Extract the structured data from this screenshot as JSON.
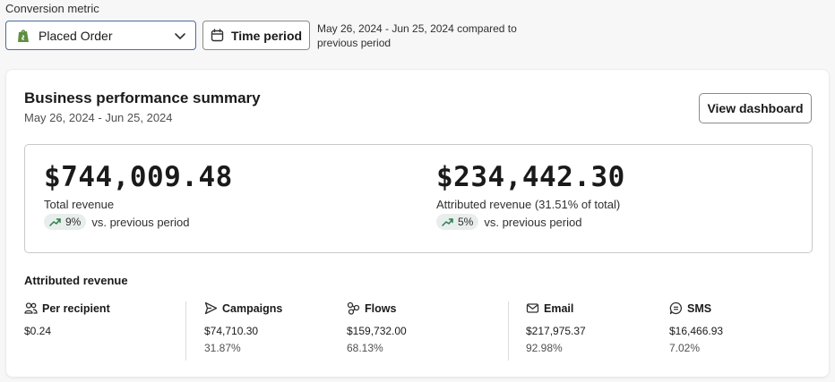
{
  "conversion": {
    "label": "Conversion metric",
    "selected": "Placed Order",
    "selected_icon": "shopify-bag-icon"
  },
  "time": {
    "button_label": "Time period",
    "note": "May 26, 2024 - Jun 25, 2024 compared to previous period"
  },
  "summary": {
    "title": "Business performance summary",
    "date_range": "May 26, 2024 - Jun 25, 2024",
    "dashboard_button": "View dashboard",
    "total": {
      "value": "$744,009.48",
      "label": "Total revenue",
      "change": "9%",
      "change_text": "vs. previous period"
    },
    "attributed": {
      "value": "$234,442.30",
      "label": "Attributed revenue (31.51% of total)",
      "change": "5%",
      "change_text": "vs. previous period"
    }
  },
  "attributed_section": {
    "title": "Attributed revenue",
    "columns": [
      {
        "name": "Per recipient",
        "icon": "people-icon",
        "value": "$0.24",
        "percent": ""
      },
      {
        "name": "Campaigns",
        "icon": "send-icon",
        "value": "$74,710.30",
        "percent": "31.87%"
      },
      {
        "name": "Flows",
        "icon": "flows-icon",
        "value": "$159,732.00",
        "percent": "68.13%"
      },
      {
        "name": "Email",
        "icon": "mail-icon",
        "value": "$217,975.37",
        "percent": "92.98%"
      },
      {
        "name": "SMS",
        "icon": "sms-icon",
        "value": "$16,466.93",
        "percent": "7.02%"
      }
    ]
  },
  "colors": {
    "trend_green": "#2e7d4f",
    "pill_bg": "#e8eeeb",
    "shopify_green": "#5e8e3e"
  }
}
